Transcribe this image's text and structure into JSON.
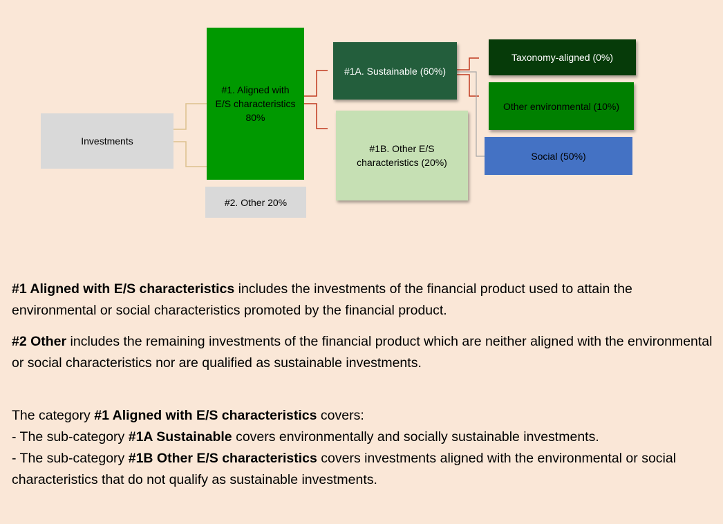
{
  "colors": {
    "background": "#fae7d7",
    "investments": "#d9d9d9",
    "aligned": "#009900",
    "other": "#d9d9d9",
    "sustainable": "#235e3c",
    "other_es": "#c6e0b4",
    "taxonomy": "#063b09",
    "other_environmental": "#008000",
    "social": "#4472c4",
    "connector_left": "#dcc08e",
    "connector_red": "#c0391e",
    "connector_grey": "#a6a6a6"
  },
  "diagram": {
    "investments": "Investments",
    "aligned": {
      "line1": "#1. Aligned with",
      "line2": "E/S characteristics",
      "line3": "80%"
    },
    "other": "#2. Other 20%",
    "sustainable": "#1A. Sustainable (60%)",
    "other_es": {
      "line1": "#1B. Other E/S",
      "line2": "characteristics (20%)"
    },
    "taxonomy": "Taxonomy-aligned (0%)",
    "other_environmental": "Other environmental (10%)",
    "social": "Social (50%)"
  },
  "text": {
    "p1": {
      "bold": "#1 Aligned with E/S characteristics",
      "rest": " includes the investments of the financial product used to attain the environmental or social characteristics promoted by the financial product."
    },
    "p2": {
      "bold": "#2 Other",
      "rest": " includes the remaining investments of the financial product which are neither aligned with the environmental or social characteristics nor are qualified as sustainable investments."
    },
    "p3": {
      "pre": "The category ",
      "bold": "#1 Aligned with E/S characteristics",
      "post": " covers:"
    },
    "p4": {
      "pre": "- The sub-category ",
      "bold": "#1A Sustainable",
      "post": " covers environmentally and socially sustainable investments."
    },
    "p5": {
      "pre": "- The sub-category ",
      "bold": "#1B Other E/S characteristics",
      "post": " covers investments aligned with the environmental or social characteristics that do not qualify as sustainable investments."
    }
  }
}
